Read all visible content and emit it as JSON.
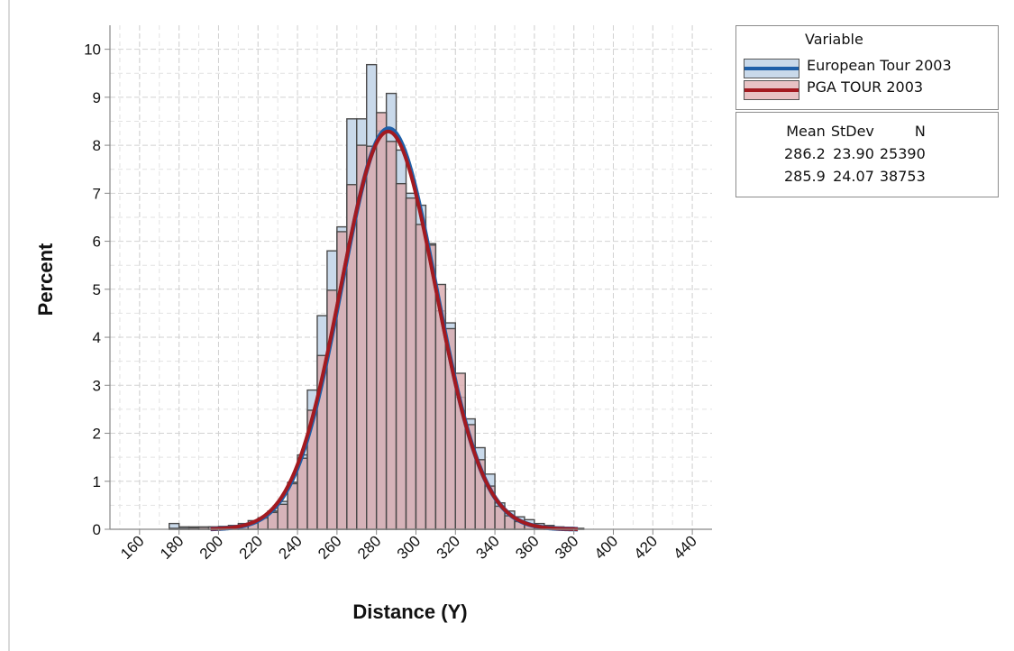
{
  "chart_data": {
    "type": "histogram",
    "xlabel": "Distance (Y)",
    "ylabel": "Percent",
    "xlim": [
      145,
      450
    ],
    "ylim": [
      0,
      10.5
    ],
    "x_ticks": [
      "160",
      "180",
      "200",
      "220",
      "240",
      "260",
      "280",
      "300",
      "320",
      "340",
      "360",
      "380",
      "400",
      "420",
      "440"
    ],
    "y_ticks": [
      "0",
      "1",
      "2",
      "3",
      "4",
      "5",
      "6",
      "7",
      "8",
      "9",
      "10"
    ],
    "bin_width": 5,
    "bin_starts": [
      175,
      180,
      185,
      190,
      195,
      200,
      205,
      210,
      215,
      220,
      225,
      230,
      235,
      240,
      245,
      250,
      255,
      260,
      265,
      270,
      275,
      280,
      285,
      290,
      295,
      300,
      305,
      310,
      315,
      320,
      325,
      330,
      335,
      340,
      345,
      350,
      355,
      360,
      365,
      370,
      375,
      380
    ],
    "series": [
      {
        "name": "European Tour 2003",
        "color": "#c9d9ea",
        "curve_color": "#1f5fa8",
        "mean": 286.2,
        "stdev": 23.9,
        "n": 25390,
        "values": [
          0.12,
          0.05,
          0.05,
          0.05,
          0.05,
          0.05,
          0.05,
          0.08,
          0.12,
          0.22,
          0.38,
          0.58,
          0.98,
          1.55,
          2.9,
          4.45,
          5.8,
          6.3,
          8.55,
          8.55,
          9.68,
          8.3,
          9.08,
          7.9,
          7.0,
          6.75,
          5.95,
          4.55,
          4.3,
          2.75,
          2.3,
          1.7,
          1.15,
          0.55,
          0.38,
          0.26,
          0.2,
          0.12,
          0.08,
          0.05,
          0.04,
          0.02
        ]
      },
      {
        "name": "PGA TOUR 2003",
        "color": "#d9a9ad",
        "curve_color": "#a31a20",
        "mean": 285.9,
        "stdev": 24.07,
        "n": 38753,
        "values": [
          0.02,
          0.02,
          0.03,
          0.04,
          0.05,
          0.06,
          0.08,
          0.12,
          0.18,
          0.24,
          0.35,
          0.52,
          0.95,
          1.48,
          2.48,
          3.62,
          4.98,
          6.2,
          7.18,
          8.0,
          7.98,
          8.68,
          8.08,
          7.2,
          6.9,
          6.35,
          5.92,
          5.1,
          4.18,
          3.25,
          2.18,
          1.45,
          0.9,
          0.48,
          0.28,
          0.16,
          0.1,
          0.06,
          0.04,
          0.02,
          0.01,
          0.01
        ]
      }
    ]
  },
  "legend": {
    "title": "Variable",
    "items": [
      {
        "label": "European Tour 2003",
        "fill": "#c9d9ea",
        "line": "#1f5fa8"
      },
      {
        "label": "PGA TOUR 2003",
        "fill": "#e8c2c4",
        "line": "#a31a20"
      }
    ]
  },
  "stats": {
    "headers": [
      "Mean",
      "StDev",
      "N"
    ],
    "rows": [
      [
        "286.2",
        "23.90",
        "25390"
      ],
      [
        "285.9",
        "24.07",
        "38753"
      ]
    ]
  }
}
